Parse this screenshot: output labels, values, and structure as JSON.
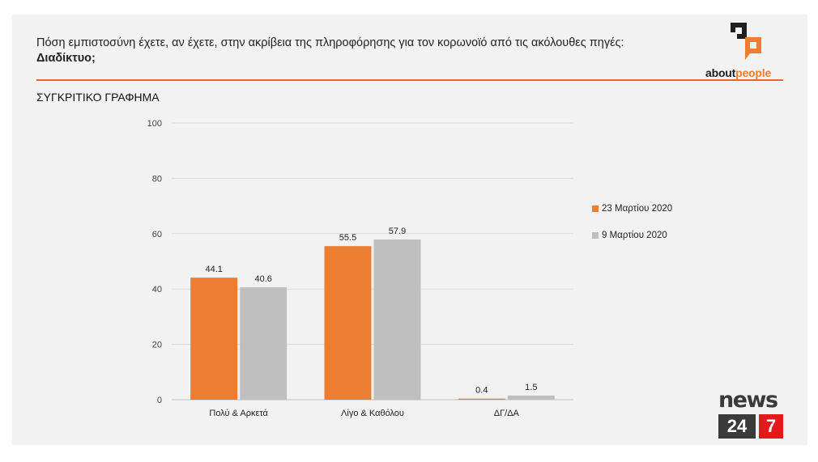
{
  "header": {
    "question": "Πόση εμπιστοσύνη έχετε, αν έχετε, στην ακρίβεια της πληροφόρησης για τον κορωνοϊό από τις ακόλουθες πηγές:",
    "source": "Διαδίκτυο;"
  },
  "section_title": "ΣΥΓΚΡΙΤΙΚΟ ΓΡΑΦΗΜΑ",
  "brand": {
    "about_prefix": "about",
    "about_suffix": "people",
    "news_word": "news",
    "news_num_a": "24",
    "news_num_b": "7"
  },
  "colors": {
    "accent": "#ed7d31",
    "series2": "#bfbfbf",
    "rule": "#e8643c",
    "news_red": "#e3191c"
  },
  "chart_data": {
    "type": "bar",
    "categories": [
      "Πολύ & Αρκετά",
      "Λίγο & Καθόλου",
      "ΔΓ/ΔΑ"
    ],
    "series": [
      {
        "name": "23 Μαρτίου 2020",
        "values": [
          44.1,
          55.5,
          0.4
        ],
        "labels": [
          "44.1",
          "55.5",
          "0.4"
        ],
        "color": "#ed7d31"
      },
      {
        "name": "9 Μαρτίου 2020",
        "values": [
          40.6,
          57.9,
          1.5
        ],
        "labels": [
          "40.6",
          "57.9",
          "1.5"
        ],
        "color": "#bfbfbf"
      }
    ],
    "ylim": [
      0,
      100
    ],
    "yticks": [
      0,
      20,
      40,
      60,
      80,
      100
    ],
    "ytick_labels": [
      "0",
      "20",
      "40",
      "60",
      "80",
      "100"
    ],
    "grid": true,
    "legend": "right",
    "title": "",
    "xlabel": "",
    "ylabel": ""
  }
}
